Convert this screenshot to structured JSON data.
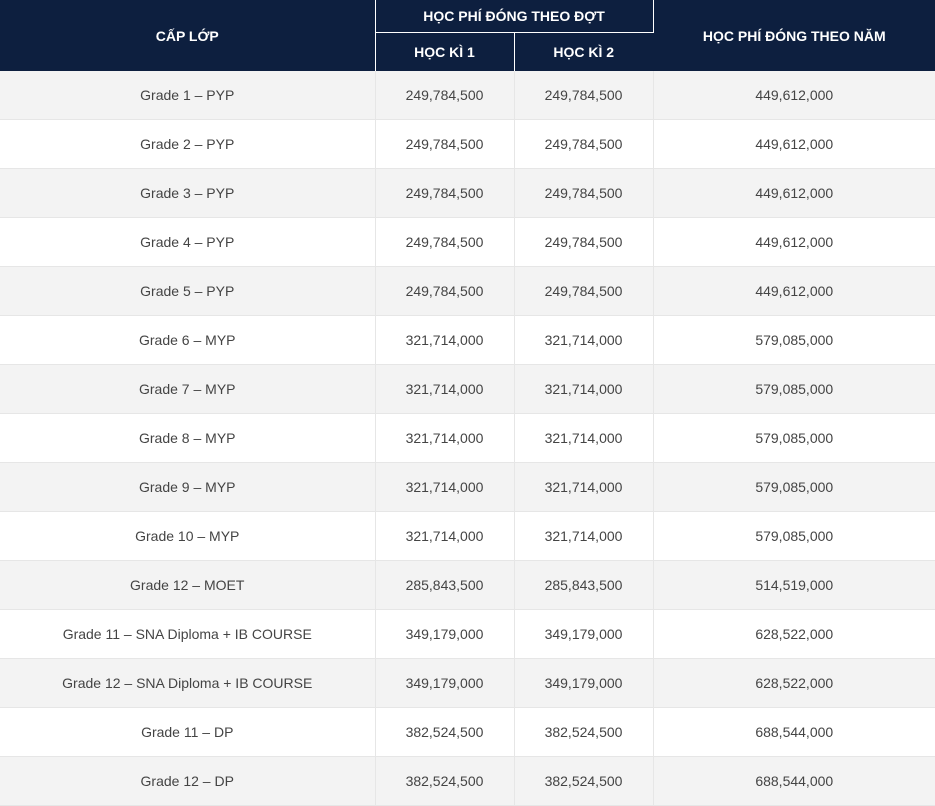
{
  "header": {
    "cap_lop": "CẤP LỚP",
    "hoc_phi_theo_dot": "HỌC PHÍ ĐÓNG THEO ĐỢT",
    "hoc_ki_1": "HỌC KÌ 1",
    "hoc_ki_2": "HỌC KÌ 2",
    "hoc_phi_theo_nam": "HỌC PHÍ ĐÓNG THEO NĂM"
  },
  "rows": [
    {
      "grade": "Grade 1 – PYP",
      "hk1": "249,784,500",
      "hk2": "249,784,500",
      "year": "449,612,000"
    },
    {
      "grade": "Grade 2 – PYP",
      "hk1": "249,784,500",
      "hk2": "249,784,500",
      "year": "449,612,000"
    },
    {
      "grade": "Grade 3 – PYP",
      "hk1": "249,784,500",
      "hk2": "249,784,500",
      "year": "449,612,000"
    },
    {
      "grade": "Grade 4 – PYP",
      "hk1": "249,784,500",
      "hk2": "249,784,500",
      "year": "449,612,000"
    },
    {
      "grade": "Grade 5 – PYP",
      "hk1": "249,784,500",
      "hk2": "249,784,500",
      "year": "449,612,000"
    },
    {
      "grade": "Grade 6 – MYP",
      "hk1": "321,714,000",
      "hk2": "321,714,000",
      "year": "579,085,000"
    },
    {
      "grade": "Grade 7 – MYP",
      "hk1": "321,714,000",
      "hk2": "321,714,000",
      "year": "579,085,000"
    },
    {
      "grade": "Grade 8 – MYP",
      "hk1": "321,714,000",
      "hk2": "321,714,000",
      "year": "579,085,000"
    },
    {
      "grade": "Grade 9 – MYP",
      "hk1": "321,714,000",
      "hk2": "321,714,000",
      "year": "579,085,000"
    },
    {
      "grade": "Grade 10 – MYP",
      "hk1": "321,714,000",
      "hk2": "321,714,000",
      "year": "579,085,000"
    },
    {
      "grade": "Grade 12 – MOET",
      "hk1": "285,843,500",
      "hk2": "285,843,500",
      "year": "514,519,000"
    },
    {
      "grade": "Grade 11 – SNA Diploma + IB COURSE",
      "hk1": "349,179,000",
      "hk2": "349,179,000",
      "year": "628,522,000"
    },
    {
      "grade": "Grade 12 – SNA Diploma + IB COURSE",
      "hk1": "349,179,000",
      "hk2": "349,179,000",
      "year": "628,522,000"
    },
    {
      "grade": "Grade 11 – DP",
      "hk1": "382,524,500",
      "hk2": "382,524,500",
      "year": "688,544,000"
    },
    {
      "grade": "Grade 12 – DP",
      "hk1": "382,524,500",
      "hk2": "382,524,500",
      "year": "688,544,000"
    }
  ],
  "colors": {
    "header_bg": "#0d1f3f",
    "header_text": "#ffffff",
    "row_alt_bg": "#f3f3f3",
    "cell_text": "#444444"
  }
}
